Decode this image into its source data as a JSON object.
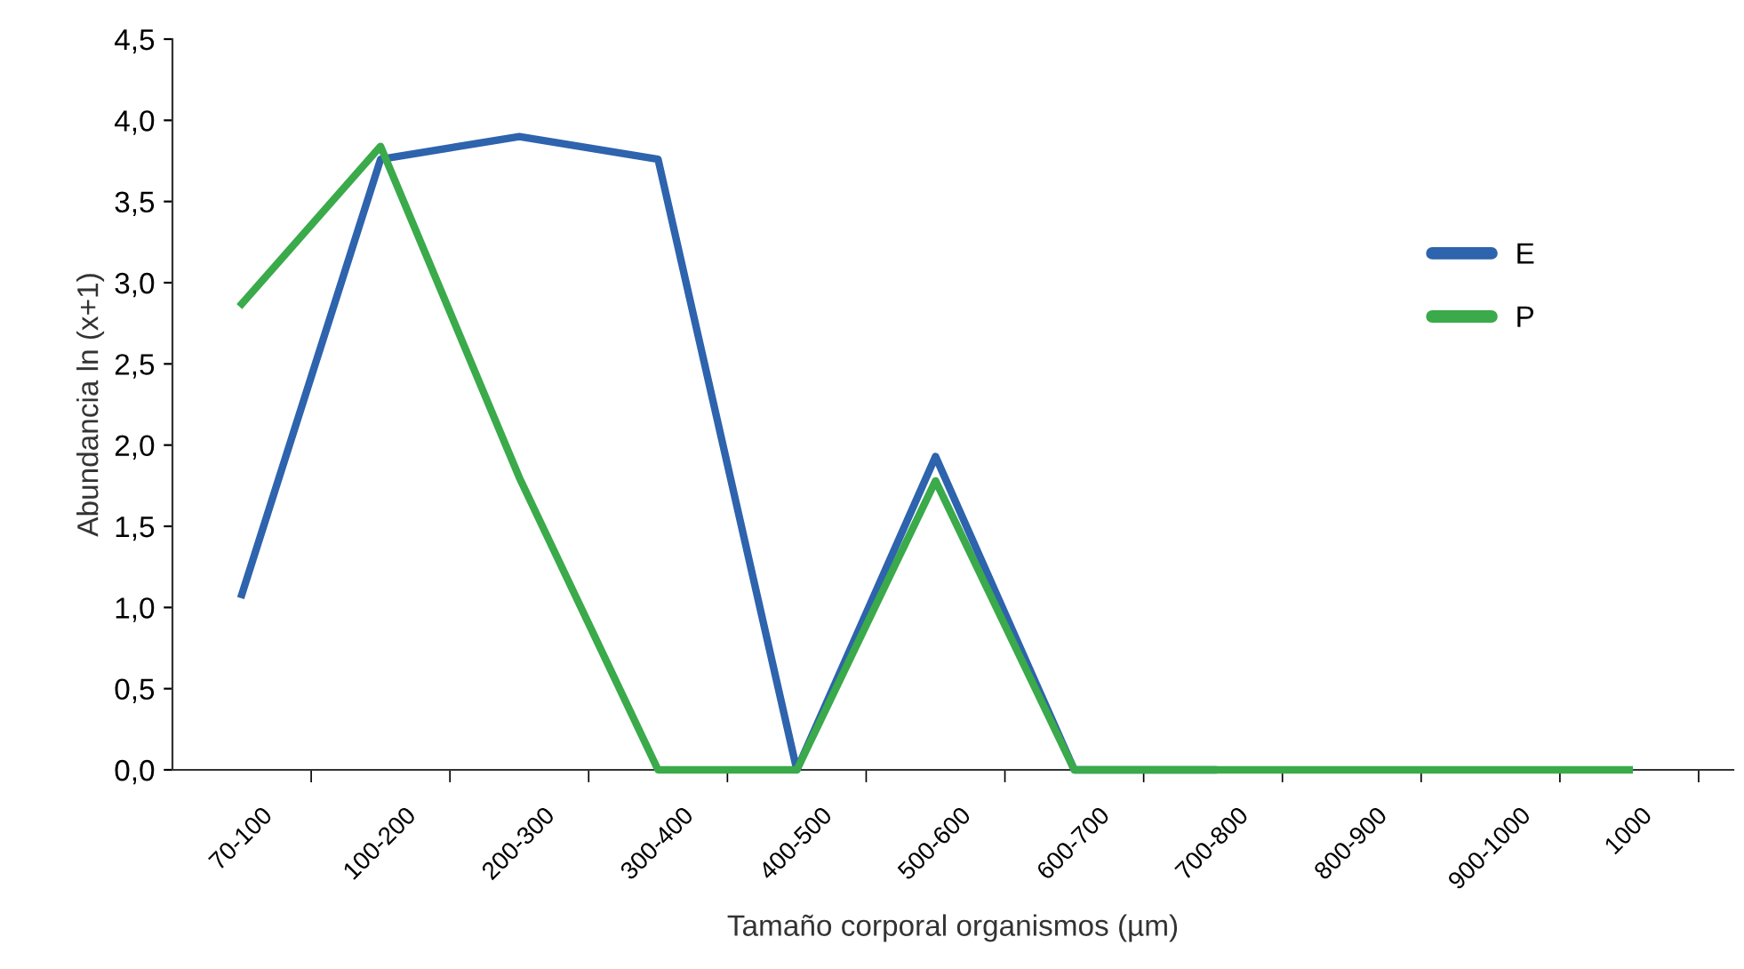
{
  "chart_data": {
    "type": "line",
    "xlabel": "Tamaño corporal organismos (µm)",
    "ylabel": "Abundancia ln (x+1)",
    "categories": [
      "70-100",
      "100-200",
      "200-300",
      "300-400",
      "400-500",
      "500-600",
      "600-700",
      "700-800",
      "800-900",
      "900-1000",
      "1000"
    ],
    "series": [
      {
        "name": "E",
        "color": "#2e63ad",
        "values": [
          1.08,
          3.76,
          3.9,
          3.76,
          0,
          1.93,
          0,
          0,
          null,
          null,
          null
        ]
      },
      {
        "name": "P",
        "color": "#3aaa4a",
        "values": [
          2.87,
          3.84,
          1.8,
          0,
          0,
          1.78,
          0,
          0,
          0,
          0,
          0
        ]
      }
    ],
    "ylim": [
      0,
      4.5
    ],
    "yticks": [
      {
        "value": 0,
        "label": "0,0"
      },
      {
        "value": 0.5,
        "label": "0,5"
      },
      {
        "value": 1,
        "label": "1,0"
      },
      {
        "value": 1.5,
        "label": "1,5"
      },
      {
        "value": 2,
        "label": "2,0"
      },
      {
        "value": 2.5,
        "label": "2,5"
      },
      {
        "value": 3,
        "label": "3,0"
      },
      {
        "value": 3.5,
        "label": "3,5"
      },
      {
        "value": 4,
        "label": "4,0"
      },
      {
        "value": 4.5,
        "label": "4,5"
      }
    ],
    "grid": false,
    "legend": "right",
    "marker": "none",
    "line_style": "solid"
  }
}
